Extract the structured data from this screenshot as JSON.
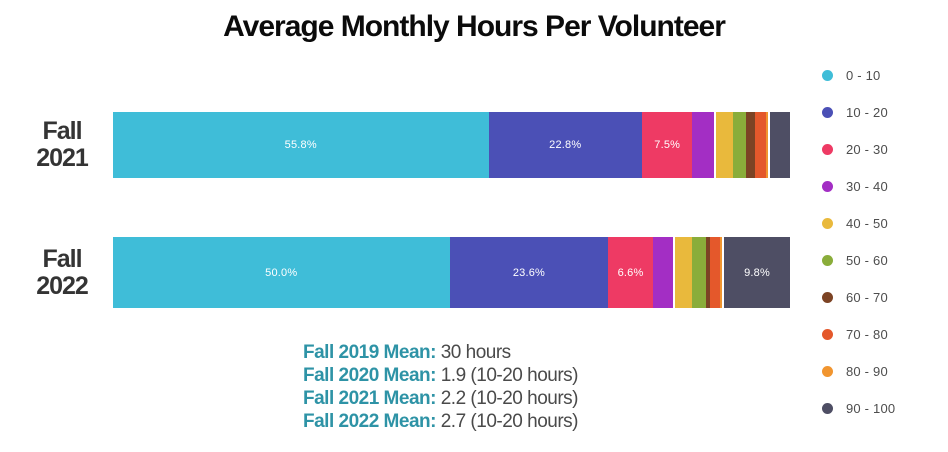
{
  "title": "Average Monthly Hours Per Volunteer",
  "chart_data": {
    "type": "bar",
    "orientation": "horizontal",
    "stacked": true,
    "unit": "percent",
    "grid": false,
    "legend_position": "right",
    "legend": [
      {
        "range": "0 - 10",
        "color": "#3fbdd8"
      },
      {
        "range": "10 - 20",
        "color": "#4b50b6"
      },
      {
        "range": "20 - 30",
        "color": "#ee3a64"
      },
      {
        "range": "30 - 40",
        "color": "#a32ec4"
      },
      {
        "range": "40 - 50",
        "color": "#e9b93c"
      },
      {
        "range": "50 - 60",
        "color": "#8aad3a"
      },
      {
        "range": "60 - 70",
        "color": "#7c4324"
      },
      {
        "range": "70 - 80",
        "color": "#e4582b"
      },
      {
        "range": "80 - 90",
        "color": "#f1952f"
      },
      {
        "range": "90 - 100",
        "color": "#4e4e64"
      }
    ],
    "bars": [
      {
        "category": "Fall 2021",
        "label_lines": [
          "Fall",
          "2021"
        ],
        "values": [
          55.8,
          22.8,
          7.5,
          3.2,
          2.5,
          1.9,
          1.4,
          1.6,
          0.3,
          3.0
        ],
        "shown_labels": [
          "55.8%",
          "22.8%",
          "7.5%",
          "",
          "",
          "",
          "",
          "",
          "",
          ""
        ]
      },
      {
        "category": "Fall 2022",
        "label_lines": [
          "Fall",
          "2022"
        ],
        "values": [
          50.0,
          23.6,
          6.6,
          3.0,
          2.5,
          2.1,
          0.6,
          1.5,
          0.3,
          9.8
        ],
        "shown_labels": [
          "50.0%",
          "23.6%",
          "6.6%",
          "",
          "",
          "",
          "",
          "",
          "",
          "9.8%"
        ]
      }
    ]
  },
  "means": [
    {
      "label": "Fall 2019 Mean:",
      "value": "30 hours"
    },
    {
      "label": "Fall 2020 Mean:",
      "value": "1.9 (10-20 hours)"
    },
    {
      "label": "Fall 2021 Mean:",
      "value": "2.2 (10-20 hours)"
    },
    {
      "label": "Fall 2022 Mean:",
      "value": "2.7 (10-20 hours)"
    }
  ],
  "colors": {
    "mean_label": "#2e93a6",
    "mean_value": "#4a4a4a",
    "category_label": "#343434",
    "legend_text": "#4d4d4d",
    "segment_label": "#ffffff",
    "background": "#ffffff"
  }
}
